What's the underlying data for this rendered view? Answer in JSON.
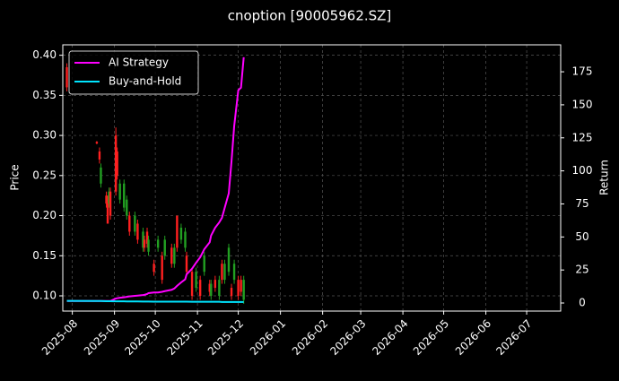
{
  "chart_data": {
    "type": "candlestick",
    "title": "cnoption [90005962.SZ]",
    "ylabel": "Price",
    "y2label": "Return",
    "x": [
      "2025-07-28",
      "2025-08-19",
      "2025-08-21",
      "2025-08-22",
      "2025-08-26",
      "2025-08-27",
      "2025-08-28",
      "2025-08-29",
      "2025-09-02",
      "2025-09-03",
      "2025-09-05",
      "2025-09-08",
      "2025-09-10",
      "2025-09-12",
      "2025-09-16",
      "2025-09-18",
      "2025-09-22",
      "2025-09-23",
      "2025-09-25",
      "2025-09-26",
      "2025-09-30",
      "2025-10-03",
      "2025-10-06",
      "2025-10-08",
      "2025-10-13",
      "2025-10-15",
      "2025-10-17",
      "2025-10-20",
      "2025-10-23",
      "2025-10-24",
      "2025-10-28",
      "2025-10-31",
      "2025-11-03",
      "2025-11-06",
      "2025-11-10",
      "2025-11-11",
      "2025-11-14",
      "2025-11-17",
      "2025-11-19",
      "2025-11-21",
      "2025-11-24",
      "2025-11-26",
      "2025-11-28",
      "2025-12-01",
      "2025-12-03",
      "2025-12-05"
    ],
    "open": [
      0.385,
      0.292,
      0.28,
      0.24,
      0.225,
      0.22,
      0.215,
      0.23,
      0.3,
      0.28,
      0.22,
      0.21,
      0.2,
      0.2,
      0.18,
      0.19,
      0.16,
      0.17,
      0.18,
      0.155,
      0.14,
      0.16,
      0.15,
      0.15,
      0.16,
      0.14,
      0.2,
      0.17,
      0.16,
      0.15,
      0.13,
      0.11,
      0.12,
      0.13,
      0.115,
      0.1,
      0.12,
      0.1,
      0.14,
      0.12,
      0.13,
      0.11,
      0.12,
      0.12,
      0.12,
      0.095
    ],
    "high": [
      0.39,
      0.293,
      0.285,
      0.265,
      0.23,
      0.225,
      0.235,
      0.235,
      0.31,
      0.285,
      0.245,
      0.245,
      0.225,
      0.205,
      0.205,
      0.195,
      0.185,
      0.175,
      0.185,
      0.175,
      0.145,
      0.175,
      0.155,
      0.175,
      0.165,
      0.165,
      0.2,
      0.19,
      0.185,
      0.155,
      0.135,
      0.135,
      0.125,
      0.155,
      0.12,
      0.12,
      0.125,
      0.125,
      0.145,
      0.145,
      0.165,
      0.115,
      0.145,
      0.125,
      0.125,
      0.125
    ],
    "low": [
      0.355,
      0.289,
      0.265,
      0.235,
      0.21,
      0.19,
      0.21,
      0.195,
      0.225,
      0.245,
      0.215,
      0.205,
      0.195,
      0.175,
      0.175,
      0.165,
      0.155,
      0.155,
      0.16,
      0.15,
      0.125,
      0.155,
      0.115,
      0.145,
      0.135,
      0.135,
      0.155,
      0.165,
      0.155,
      0.125,
      0.095,
      0.105,
      0.095,
      0.125,
      0.1,
      0.095,
      0.105,
      0.095,
      0.115,
      0.115,
      0.125,
      0.095,
      0.115,
      0.095,
      0.1,
      0.09
    ],
    "close": [
      0.36,
      0.29,
      0.27,
      0.26,
      0.215,
      0.19,
      0.23,
      0.2,
      0.23,
      0.25,
      0.24,
      0.24,
      0.22,
      0.18,
      0.2,
      0.17,
      0.18,
      0.16,
      0.165,
      0.17,
      0.13,
      0.17,
      0.12,
      0.17,
      0.14,
      0.16,
      0.16,
      0.185,
      0.18,
      0.13,
      0.1,
      0.13,
      0.1,
      0.15,
      0.105,
      0.115,
      0.11,
      0.12,
      0.12,
      0.14,
      0.16,
      0.1,
      0.14,
      0.1,
      0.105,
      0.12
    ],
    "up_color": "#22a022",
    "down_color": "#ff2020",
    "series": [
      {
        "name": "AI Strategy",
        "color": "#ff00ff",
        "axis": "y2",
        "values": [
          1.5,
          1.5,
          1.5,
          1.5,
          1.5,
          1.5,
          1.5,
          1.5,
          3.4,
          3.6,
          4,
          4.3,
          4.7,
          5,
          5.4,
          5.6,
          6,
          6.2,
          6.8,
          7.5,
          8,
          8,
          8.5,
          9,
          10,
          11,
          13,
          15.6,
          18,
          21.7,
          26,
          30.5,
          34.6,
          40.7,
          46,
          51,
          57,
          61,
          64.5,
          72,
          83,
          107,
          134,
          161,
          163,
          186
        ]
      },
      {
        "name": "Buy-and-Hold",
        "color": "#00e5ff",
        "axis": "y2",
        "values": [
          1.6,
          1.5,
          1.5,
          1.5,
          1.4,
          1.4,
          1.4,
          1.4,
          1.3,
          1.3,
          1.3,
          1.3,
          1.2,
          1.2,
          1.2,
          1.2,
          1.1,
          1.1,
          1.1,
          1.1,
          1,
          1,
          1,
          1,
          1,
          1,
          1,
          1,
          1,
          1,
          0.9,
          0.9,
          0.9,
          0.9,
          0.9,
          0.9,
          0.9,
          0.9,
          0.8,
          0.8,
          0.8,
          0.8,
          0.8,
          0.8,
          0.8,
          0.8
        ]
      }
    ],
    "xlim": [
      "2025-07-25",
      "2026-07-26"
    ],
    "xticks": [
      "2025-08",
      "2025-09",
      "2025-10",
      "2025-11",
      "2025-12",
      "2026-01",
      "2026-02",
      "2026-03",
      "2026-04",
      "2026-05",
      "2026-06",
      "2026-07"
    ],
    "ylim": [
      0.081,
      0.413
    ],
    "yticks": [
      {
        "value": 0.1,
        "label": "0.10"
      },
      {
        "value": 0.15,
        "label": "0.15"
      },
      {
        "value": 0.2,
        "label": "0.20"
      },
      {
        "value": 0.25,
        "label": "0.25"
      },
      {
        "value": 0.3,
        "label": "0.30"
      },
      {
        "value": 0.35,
        "label": "0.35"
      },
      {
        "value": 0.4,
        "label": "0.40"
      }
    ],
    "y2lim": [
      -6.1,
      195.4
    ],
    "y2ticks": [
      0,
      25,
      50,
      75,
      100,
      125,
      150,
      175
    ],
    "grid": true,
    "legend": "upper left"
  }
}
